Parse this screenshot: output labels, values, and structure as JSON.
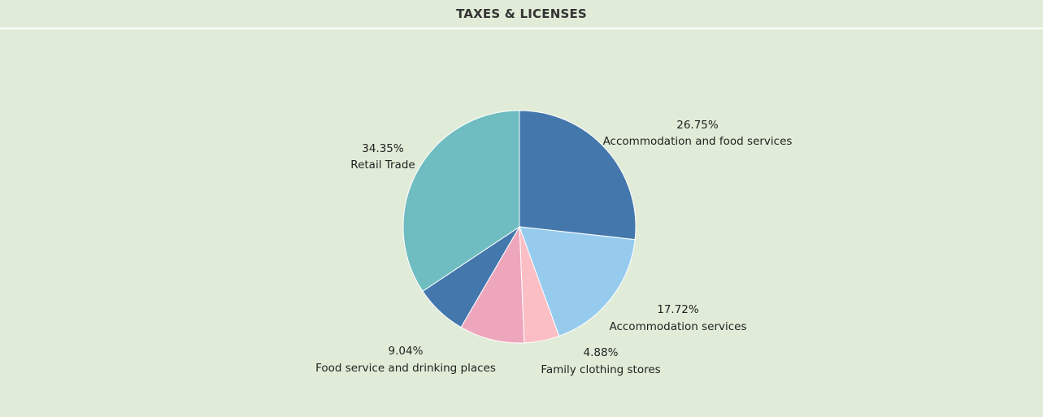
{
  "title": "TAXES & LICENSES",
  "chart_data": {
    "type": "pie",
    "title": "TAXES & LICENSES",
    "slices": [
      {
        "label": "Accommodation and food services",
        "value": 26.75,
        "display": "26.75%",
        "color": "#4478ad"
      },
      {
        "label": "Accommodation services",
        "value": 17.72,
        "display": "17.72%",
        "color": "#96cbee"
      },
      {
        "label": "Family clothing stores",
        "value": 4.88,
        "display": "4.88%",
        "color": "#fbbec5"
      },
      {
        "label": "Food service and drinking places",
        "value": 9.04,
        "display": "9.04%",
        "color": "#eea6bc"
      },
      {
        "label": "",
        "value": 7.26,
        "display": "",
        "color": "#4478ad"
      },
      {
        "label": "Retail Trade",
        "value": 34.35,
        "display": "34.35%",
        "color": "#6fbcc1"
      }
    ],
    "start_angle": "12 o'clock",
    "direction": "clockwise",
    "legend": "none",
    "background": "#e1ecd8"
  }
}
